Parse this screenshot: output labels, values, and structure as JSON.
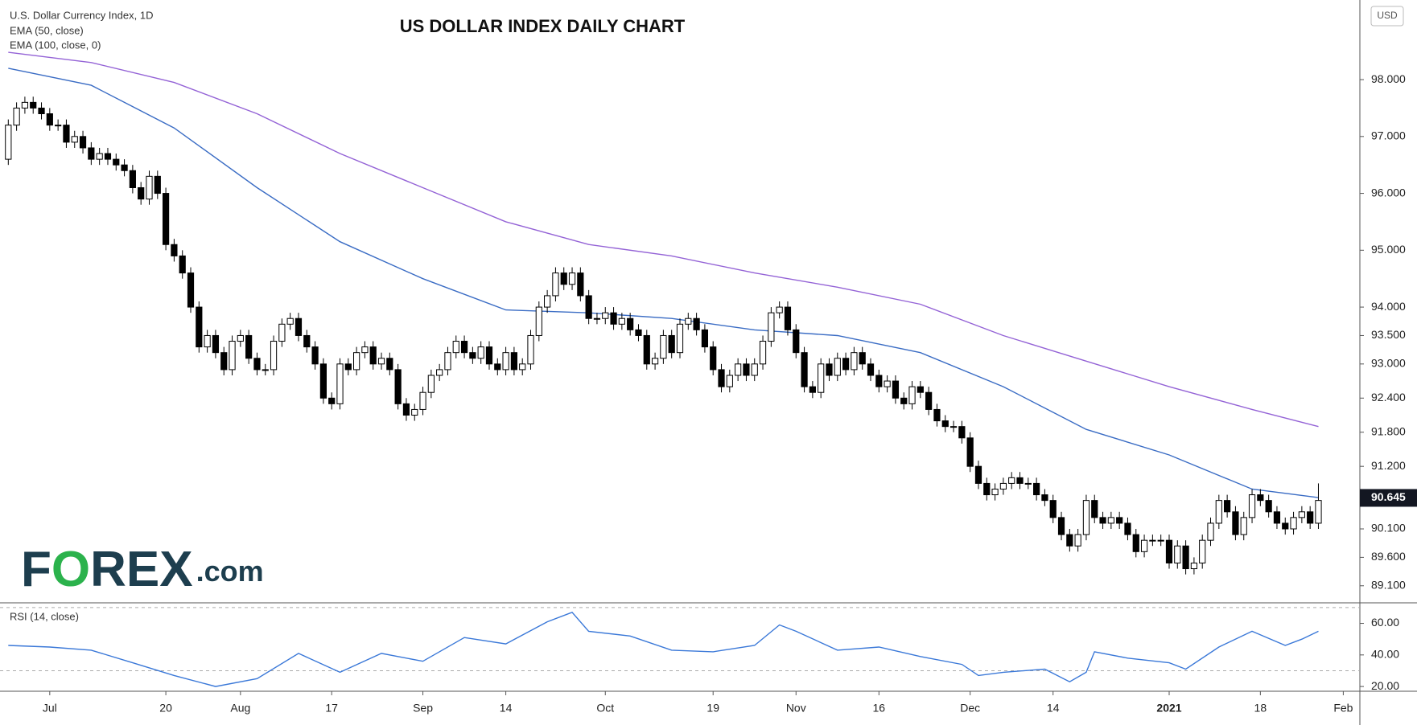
{
  "title": "US DOLLAR INDEX DAILY CHART",
  "logo": {
    "parts": [
      "F",
      "O",
      "REX"
    ],
    "suffix": ".com"
  },
  "currency_button": "USD",
  "chart_data": [
    {
      "type": "candlestick",
      "name": "U.S. Dollar Currency Index, 1D",
      "up_color": "#ffffff",
      "down_color": "#000000",
      "xlim": [
        -1,
        163
      ],
      "ylim": [
        88.8,
        99.4
      ],
      "yticks": [
        {
          "value": 89.1,
          "label": "89.100"
        },
        {
          "value": 89.6,
          "label": "89.600"
        },
        {
          "value": 90.1,
          "label": "90.100"
        },
        {
          "value": 91.2,
          "label": "91.200"
        },
        {
          "value": 91.8,
          "label": "91.800"
        },
        {
          "value": 92.4,
          "label": "92.400"
        },
        {
          "value": 93,
          "label": "93.000"
        },
        {
          "value": 93.5,
          "label": "93.500"
        },
        {
          "value": 94,
          "label": "94.000"
        },
        {
          "value": 95,
          "label": "95.000"
        },
        {
          "value": 96,
          "label": "96.000"
        },
        {
          "value": 97,
          "label": "97.000"
        },
        {
          "value": 98,
          "label": "98.000"
        }
      ],
      "last_price": {
        "value": 90.645,
        "label": "90.645"
      },
      "candles": [
        [
          96.6,
          97.3,
          96.5,
          97.2
        ],
        [
          97.2,
          97.6,
          97.1,
          97.5
        ],
        [
          97.5,
          97.7,
          97.4,
          97.6
        ],
        [
          97.6,
          97.7,
          97.4,
          97.5
        ],
        [
          97.5,
          97.6,
          97.3,
          97.4
        ],
        [
          97.4,
          97.5,
          97.1,
          97.2
        ],
        [
          97.2,
          97.3,
          97.1,
          97.2
        ],
        [
          97.2,
          97.3,
          96.8,
          96.9
        ],
        [
          96.9,
          97.1,
          96.8,
          97.0
        ],
        [
          97.0,
          97.1,
          96.7,
          96.8
        ],
        [
          96.8,
          96.9,
          96.5,
          96.6
        ],
        [
          96.6,
          96.8,
          96.5,
          96.7
        ],
        [
          96.7,
          96.8,
          96.5,
          96.6
        ],
        [
          96.6,
          96.7,
          96.4,
          96.5
        ],
        [
          96.5,
          96.6,
          96.3,
          96.4
        ],
        [
          96.4,
          96.5,
          96.0,
          96.1
        ],
        [
          96.1,
          96.2,
          95.8,
          95.9
        ],
        [
          95.9,
          96.4,
          95.8,
          96.3
        ],
        [
          96.3,
          96.4,
          95.9,
          96.0
        ],
        [
          96.0,
          96.1,
          95.0,
          95.1
        ],
        [
          95.1,
          95.2,
          94.8,
          94.9
        ],
        [
          94.9,
          95.0,
          94.5,
          94.6
        ],
        [
          94.6,
          94.7,
          93.9,
          94.0
        ],
        [
          94.0,
          94.1,
          93.2,
          93.3
        ],
        [
          93.3,
          93.6,
          93.2,
          93.5
        ],
        [
          93.5,
          93.6,
          93.1,
          93.2
        ],
        [
          93.2,
          93.3,
          92.8,
          92.9
        ],
        [
          92.9,
          93.5,
          92.8,
          93.4
        ],
        [
          93.4,
          93.6,
          93.3,
          93.5
        ],
        [
          93.5,
          93.6,
          93.0,
          93.1
        ],
        [
          93.1,
          93.2,
          92.8,
          92.9
        ],
        [
          92.9,
          93.0,
          92.8,
          92.9
        ],
        [
          92.9,
          93.5,
          92.8,
          93.4
        ],
        [
          93.4,
          93.8,
          93.3,
          93.7
        ],
        [
          93.7,
          93.9,
          93.6,
          93.8
        ],
        [
          93.8,
          93.9,
          93.4,
          93.5
        ],
        [
          93.5,
          93.6,
          93.2,
          93.3
        ],
        [
          93.3,
          93.4,
          92.9,
          93.0
        ],
        [
          93.0,
          93.1,
          92.3,
          92.4
        ],
        [
          92.4,
          92.5,
          92.2,
          92.3
        ],
        [
          92.3,
          93.1,
          92.2,
          93.0
        ],
        [
          93.0,
          93.1,
          92.8,
          92.9
        ],
        [
          92.9,
          93.3,
          92.8,
          93.2
        ],
        [
          93.2,
          93.4,
          93.1,
          93.3
        ],
        [
          93.3,
          93.4,
          92.9,
          93.0
        ],
        [
          93.0,
          93.2,
          92.9,
          93.1
        ],
        [
          93.1,
          93.2,
          92.8,
          92.9
        ],
        [
          92.9,
          93.0,
          92.2,
          92.3
        ],
        [
          92.3,
          92.4,
          92.0,
          92.1
        ],
        [
          92.1,
          92.3,
          92.0,
          92.2
        ],
        [
          92.2,
          92.6,
          92.1,
          92.5
        ],
        [
          92.5,
          92.9,
          92.4,
          92.8
        ],
        [
          92.8,
          93.0,
          92.7,
          92.9
        ],
        [
          92.9,
          93.3,
          92.8,
          93.2
        ],
        [
          93.2,
          93.5,
          93.1,
          93.4
        ],
        [
          93.4,
          93.5,
          93.1,
          93.2
        ],
        [
          93.2,
          93.3,
          93.0,
          93.1
        ],
        [
          93.1,
          93.4,
          93.0,
          93.3
        ],
        [
          93.3,
          93.4,
          92.9,
          93.0
        ],
        [
          93.0,
          93.1,
          92.8,
          92.9
        ],
        [
          92.9,
          93.3,
          92.8,
          93.2
        ],
        [
          93.2,
          93.3,
          92.8,
          92.9
        ],
        [
          92.9,
          93.1,
          92.8,
          93.0
        ],
        [
          93.0,
          93.6,
          92.9,
          93.5
        ],
        [
          93.5,
          94.1,
          93.4,
          94.0
        ],
        [
          94.0,
          94.3,
          93.9,
          94.2
        ],
        [
          94.2,
          94.7,
          94.1,
          94.6
        ],
        [
          94.6,
          94.7,
          94.3,
          94.4
        ],
        [
          94.4,
          94.7,
          94.3,
          94.6
        ],
        [
          94.6,
          94.7,
          94.1,
          94.2
        ],
        [
          94.2,
          94.3,
          93.7,
          93.8
        ],
        [
          93.8,
          93.9,
          93.7,
          93.8
        ],
        [
          93.8,
          94.0,
          93.7,
          93.9
        ],
        [
          93.9,
          94.0,
          93.6,
          93.7
        ],
        [
          93.7,
          93.9,
          93.6,
          93.8
        ],
        [
          93.8,
          93.9,
          93.5,
          93.6
        ],
        [
          93.6,
          93.7,
          93.4,
          93.5
        ],
        [
          93.5,
          93.6,
          92.9,
          93.0
        ],
        [
          93.0,
          93.2,
          92.9,
          93.1
        ],
        [
          93.1,
          93.6,
          93.0,
          93.5
        ],
        [
          93.5,
          93.6,
          93.1,
          93.2
        ],
        [
          93.2,
          93.8,
          93.1,
          93.7
        ],
        [
          93.7,
          93.9,
          93.6,
          93.8
        ],
        [
          93.8,
          93.9,
          93.5,
          93.6
        ],
        [
          93.6,
          93.7,
          93.2,
          93.3
        ],
        [
          93.3,
          93.4,
          92.8,
          92.9
        ],
        [
          92.9,
          93.0,
          92.5,
          92.6
        ],
        [
          92.6,
          92.9,
          92.5,
          92.8
        ],
        [
          92.8,
          93.1,
          92.7,
          93.0
        ],
        [
          93.0,
          93.1,
          92.7,
          92.8
        ],
        [
          92.8,
          93.1,
          92.7,
          93.0
        ],
        [
          93.0,
          93.5,
          92.9,
          93.4
        ],
        [
          93.4,
          94.0,
          93.3,
          93.9
        ],
        [
          93.9,
          94.1,
          93.8,
          94.0
        ],
        [
          94.0,
          94.1,
          93.5,
          93.6
        ],
        [
          93.6,
          93.7,
          93.1,
          93.2
        ],
        [
          93.2,
          93.3,
          92.5,
          92.6
        ],
        [
          92.6,
          92.7,
          92.4,
          92.5
        ],
        [
          92.5,
          93.1,
          92.4,
          93.0
        ],
        [
          93.0,
          93.1,
          92.7,
          92.8
        ],
        [
          92.8,
          93.2,
          92.7,
          93.1
        ],
        [
          93.1,
          93.2,
          92.8,
          92.9
        ],
        [
          92.9,
          93.3,
          92.8,
          93.2
        ],
        [
          93.2,
          93.3,
          92.9,
          93.0
        ],
        [
          93.0,
          93.1,
          92.7,
          92.8
        ],
        [
          92.8,
          92.9,
          92.5,
          92.6
        ],
        [
          92.6,
          92.8,
          92.5,
          92.7
        ],
        [
          92.7,
          92.8,
          92.3,
          92.4
        ],
        [
          92.4,
          92.5,
          92.2,
          92.3
        ],
        [
          92.3,
          92.7,
          92.2,
          92.6
        ],
        [
          92.6,
          92.7,
          92.4,
          92.5
        ],
        [
          92.5,
          92.6,
          92.1,
          92.2
        ],
        [
          92.2,
          92.3,
          91.9,
          92.0
        ],
        [
          92.0,
          92.1,
          91.8,
          91.9
        ],
        [
          91.9,
          92.0,
          91.8,
          91.9
        ],
        [
          91.9,
          92.0,
          91.6,
          91.7
        ],
        [
          91.7,
          91.8,
          91.1,
          91.2
        ],
        [
          91.2,
          91.3,
          90.8,
          90.9
        ],
        [
          90.9,
          91.0,
          90.6,
          90.7
        ],
        [
          90.7,
          90.9,
          90.6,
          90.8
        ],
        [
          90.8,
          91.0,
          90.7,
          90.9
        ],
        [
          90.9,
          91.1,
          90.8,
          91.0
        ],
        [
          91.0,
          91.1,
          90.8,
          90.9
        ],
        [
          90.9,
          91.0,
          90.8,
          90.9
        ],
        [
          90.9,
          91.0,
          90.6,
          90.7
        ],
        [
          90.7,
          90.8,
          90.5,
          90.6
        ],
        [
          90.6,
          90.7,
          90.2,
          90.3
        ],
        [
          90.3,
          90.4,
          89.9,
          90.0
        ],
        [
          90.0,
          90.1,
          89.7,
          89.8
        ],
        [
          89.8,
          90.1,
          89.7,
          90.0
        ],
        [
          90.0,
          90.7,
          89.9,
          90.6
        ],
        [
          90.6,
          90.7,
          90.2,
          90.3
        ],
        [
          90.3,
          90.4,
          90.1,
          90.2
        ],
        [
          90.2,
          90.4,
          90.1,
          90.3
        ],
        [
          90.3,
          90.4,
          90.1,
          90.2
        ],
        [
          90.2,
          90.3,
          89.9,
          90.0
        ],
        [
          90.0,
          90.1,
          89.6,
          89.7
        ],
        [
          89.7,
          90.0,
          89.6,
          89.9
        ],
        [
          89.9,
          90.0,
          89.8,
          89.9
        ],
        [
          89.9,
          90.0,
          89.8,
          89.9
        ],
        [
          89.9,
          90.0,
          89.4,
          89.5
        ],
        [
          89.5,
          89.9,
          89.4,
          89.8
        ],
        [
          89.8,
          89.9,
          89.3,
          89.4
        ],
        [
          89.4,
          89.6,
          89.3,
          89.5
        ],
        [
          89.5,
          90.0,
          89.4,
          89.9
        ],
        [
          89.9,
          90.3,
          89.8,
          90.2
        ],
        [
          90.2,
          90.7,
          90.1,
          90.6
        ],
        [
          90.6,
          90.7,
          90.3,
          90.4
        ],
        [
          90.4,
          90.5,
          89.9,
          90.0
        ],
        [
          90.0,
          90.4,
          89.9,
          90.3
        ],
        [
          90.3,
          90.8,
          90.2,
          90.7
        ],
        [
          90.7,
          90.8,
          90.5,
          90.6
        ],
        [
          90.6,
          90.7,
          90.3,
          90.4
        ],
        [
          90.4,
          90.5,
          90.1,
          90.2
        ],
        [
          90.2,
          90.3,
          90.0,
          90.1
        ],
        [
          90.1,
          90.4,
          90.0,
          90.3
        ],
        [
          90.3,
          90.5,
          90.2,
          90.4
        ],
        [
          90.4,
          90.5,
          90.1,
          90.2
        ],
        [
          90.2,
          90.9,
          90.1,
          90.6
        ]
      ],
      "series": [
        {
          "name": "EMA (50, close)",
          "color": "#3a6cc4",
          "x": [
            0,
            10,
            20,
            30,
            40,
            50,
            60,
            70,
            80,
            90,
            100,
            110,
            120,
            130,
            140,
            150,
            158
          ],
          "values": [
            98.2,
            97.9,
            97.15,
            96.1,
            95.15,
            94.5,
            93.95,
            93.9,
            93.8,
            93.6,
            93.5,
            93.2,
            92.6,
            91.85,
            91.4,
            90.8,
            90.65
          ]
        },
        {
          "name": "EMA (100, close, 0)",
          "color": "#9463d6",
          "x": [
            0,
            10,
            20,
            30,
            40,
            50,
            60,
            70,
            80,
            90,
            100,
            110,
            120,
            130,
            140,
            150,
            158
          ],
          "values": [
            98.48,
            98.3,
            97.95,
            97.4,
            96.7,
            96.1,
            95.5,
            95.1,
            94.9,
            94.6,
            94.35,
            94.05,
            93.5,
            93.05,
            92.6,
            92.2,
            91.9
          ]
        }
      ]
    },
    {
      "type": "line",
      "name": "RSI (14, close)",
      "color": "#3a78d8",
      "xlim": [
        -1,
        163
      ],
      "ylim": [
        17,
        73
      ],
      "yticks": [
        {
          "value": 20,
          "label": "20.00"
        },
        {
          "value": 40,
          "label": "40.00"
        },
        {
          "value": 60,
          "label": "60.00"
        }
      ],
      "bands": [
        30,
        70
      ],
      "xticks": [
        {
          "value": 5,
          "label": "Jul"
        },
        {
          "value": 19,
          "label": "20"
        },
        {
          "value": 28,
          "label": "Aug"
        },
        {
          "value": 39,
          "label": "17"
        },
        {
          "value": 50,
          "label": "Sep"
        },
        {
          "value": 60,
          "label": "14"
        },
        {
          "value": 72,
          "label": "Oct"
        },
        {
          "value": 85,
          "label": "19"
        },
        {
          "value": 95,
          "label": "Nov"
        },
        {
          "value": 105,
          "label": "16"
        },
        {
          "value": 116,
          "label": "Dec"
        },
        {
          "value": 126,
          "label": "14"
        },
        {
          "value": 140,
          "label": "2021"
        },
        {
          "value": 151,
          "label": "18"
        },
        {
          "value": 161,
          "label": "Feb"
        }
      ],
      "x": [
        0,
        5,
        10,
        15,
        20,
        25,
        30,
        35,
        40,
        45,
        50,
        55,
        60,
        65,
        68,
        70,
        75,
        80,
        85,
        90,
        93,
        95,
        100,
        105,
        110,
        115,
        117,
        120,
        125,
        128,
        130,
        131,
        135,
        140,
        142,
        146,
        150,
        154,
        156,
        158
      ],
      "values": [
        46,
        45,
        43,
        35,
        27,
        20,
        25,
        41,
        29,
        41,
        36,
        51,
        47,
        61,
        67,
        55,
        52,
        43,
        42,
        46,
        59,
        55,
        43,
        45,
        39,
        34,
        27,
        29,
        31,
        23,
        29,
        42,
        38,
        35,
        31,
        45,
        55,
        46,
        50,
        55
      ]
    }
  ]
}
